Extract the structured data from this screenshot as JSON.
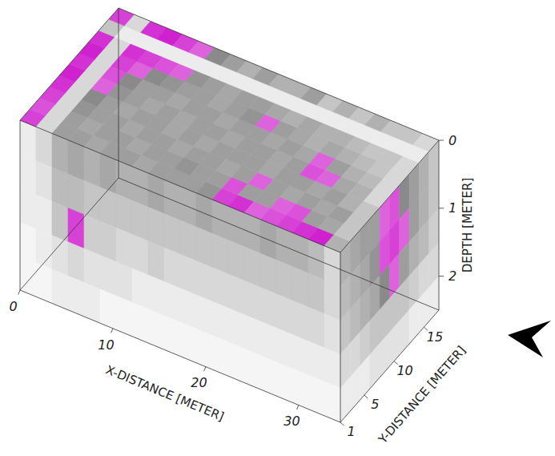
{
  "chart_data": {
    "type": "gpr_volume",
    "x_label": "X-DISTANCE [METER]",
    "y_label": "Y-DISTANCE [METER]",
    "z_label": "DEPTH [METER]",
    "xlim": [
      0,
      34.5
    ],
    "xticks": [
      0,
      10,
      20,
      30
    ],
    "ylim": [
      1,
      17.5
    ],
    "yticks": [
      1,
      5,
      10,
      15
    ],
    "zlim": [
      0,
      2.5
    ],
    "zticks": [
      0,
      1,
      2
    ],
    "top_slice": [
      [
        0.8,
        0.2,
        0.5,
        0.5,
        0.45,
        0.5,
        0.5,
        0.45,
        0.5,
        0.5,
        0.5,
        0.55,
        0.8,
        0.85,
        0.7,
        0.75,
        0.8,
        0.85,
        0.9,
        0.4
      ],
      [
        0.75,
        0.2,
        0.5,
        0.45,
        0.5,
        0.5,
        0.45,
        0.5,
        0.5,
        0.55,
        0.5,
        0.5,
        0.75,
        0.5,
        0.5,
        0.7,
        0.75,
        0.5,
        0.45,
        0.3
      ],
      [
        0.8,
        0.2,
        0.55,
        0.5,
        0.5,
        0.45,
        0.5,
        0.5,
        0.45,
        0.5,
        0.5,
        0.45,
        0.5,
        0.7,
        0.5,
        0.45,
        0.5,
        0.45,
        0.5,
        0.3
      ],
      [
        0.85,
        0.2,
        0.6,
        0.5,
        0.45,
        0.5,
        0.5,
        0.45,
        0.5,
        0.45,
        0.5,
        0.5,
        0.5,
        0.45,
        0.5,
        0.5,
        0.45,
        0.5,
        0.4,
        0.3
      ],
      [
        0.9,
        0.2,
        0.7,
        0.55,
        0.5,
        0.45,
        0.5,
        0.45,
        0.5,
        0.5,
        0.45,
        0.5,
        0.5,
        0.45,
        0.5,
        0.75,
        0.7,
        0.45,
        0.4,
        0.2
      ],
      [
        0.85,
        0.2,
        0.75,
        0.6,
        0.5,
        0.5,
        0.45,
        0.5,
        0.5,
        0.45,
        0.5,
        0.5,
        0.45,
        0.5,
        0.45,
        0.7,
        0.5,
        0.4,
        0.35,
        0.2
      ],
      [
        0.9,
        0.2,
        0.8,
        0.7,
        0.6,
        0.55,
        0.5,
        0.5,
        0.45,
        0.5,
        0.55,
        0.7,
        0.5,
        0.45,
        0.4,
        0.45,
        0.4,
        0.35,
        0.3,
        0.2
      ],
      [
        0.85,
        0.2,
        0.85,
        0.8,
        0.75,
        0.7,
        0.55,
        0.5,
        0.45,
        0.5,
        0.5,
        0.45,
        0.4,
        0.45,
        0.4,
        0.4,
        0.35,
        0.3,
        0.3,
        0.2
      ],
      [
        0.3,
        0.1,
        0.1,
        0.1,
        0.1,
        0.1,
        0.1,
        0.1,
        0.1,
        0.1,
        0.1,
        0.1,
        0.1,
        0.1,
        0.1,
        0.1,
        0.1,
        0.1,
        0.1,
        0.1
      ],
      [
        0.8,
        0.2,
        0.85,
        0.9,
        0.8,
        0.7,
        0.6,
        0.5,
        0.4,
        0.5,
        0.4,
        0.4,
        0.5,
        0.3,
        0.4,
        0.3,
        0.4,
        0.3,
        0.3,
        0.2
      ]
    ],
    "front_slice": [
      [
        0.1,
        0.2,
        0.4,
        0.45,
        0.4,
        0.45,
        0.4,
        0.4,
        0.45,
        0.4,
        0.4,
        0.45,
        0.4,
        0.4,
        0.4,
        0.45,
        0.4,
        0.4,
        0.35,
        0.2
      ],
      [
        0.1,
        0.15,
        0.35,
        0.35,
        0.3,
        0.3,
        0.3,
        0.3,
        0.3,
        0.3,
        0.3,
        0.3,
        0.3,
        0.3,
        0.3,
        0.3,
        0.3,
        0.3,
        0.3,
        0.2
      ],
      [
        0.1,
        0.1,
        0.3,
        0.8,
        0.25,
        0.25,
        0.2,
        0.2,
        0.25,
        0.2,
        0.2,
        0.2,
        0.2,
        0.2,
        0.2,
        0.2,
        0.2,
        0.2,
        0.2,
        0.15
      ],
      [
        0.05,
        0.1,
        0.15,
        0.2,
        0.15,
        0.15,
        0.15,
        0.1,
        0.1,
        0.1,
        0.1,
        0.1,
        0.1,
        0.1,
        0.1,
        0.1,
        0.1,
        0.1,
        0.1,
        0.1
      ],
      [
        0.05,
        0.05,
        0.1,
        0.1,
        0.1,
        0.05,
        0.05,
        0.05,
        0.05,
        0.05,
        0.05,
        0.05,
        0.05,
        0.05,
        0.05,
        0.05,
        0.05,
        0.05,
        0.05,
        0.05
      ]
    ],
    "side_slice": [
      [
        0.4,
        0.45,
        0.5,
        0.5,
        0.7,
        0.75,
        0.6,
        0.5,
        0.4,
        0.3
      ],
      [
        0.35,
        0.4,
        0.45,
        0.55,
        0.75,
        0.8,
        0.7,
        0.5,
        0.4,
        0.3
      ],
      [
        0.3,
        0.35,
        0.4,
        0.45,
        0.6,
        0.7,
        0.5,
        0.4,
        0.35,
        0.25
      ],
      [
        0.2,
        0.2,
        0.25,
        0.3,
        0.3,
        0.3,
        0.3,
        0.25,
        0.2,
        0.2
      ],
      [
        0.1,
        0.1,
        0.1,
        0.15,
        0.15,
        0.15,
        0.15,
        0.1,
        0.1,
        0.1
      ]
    ]
  }
}
